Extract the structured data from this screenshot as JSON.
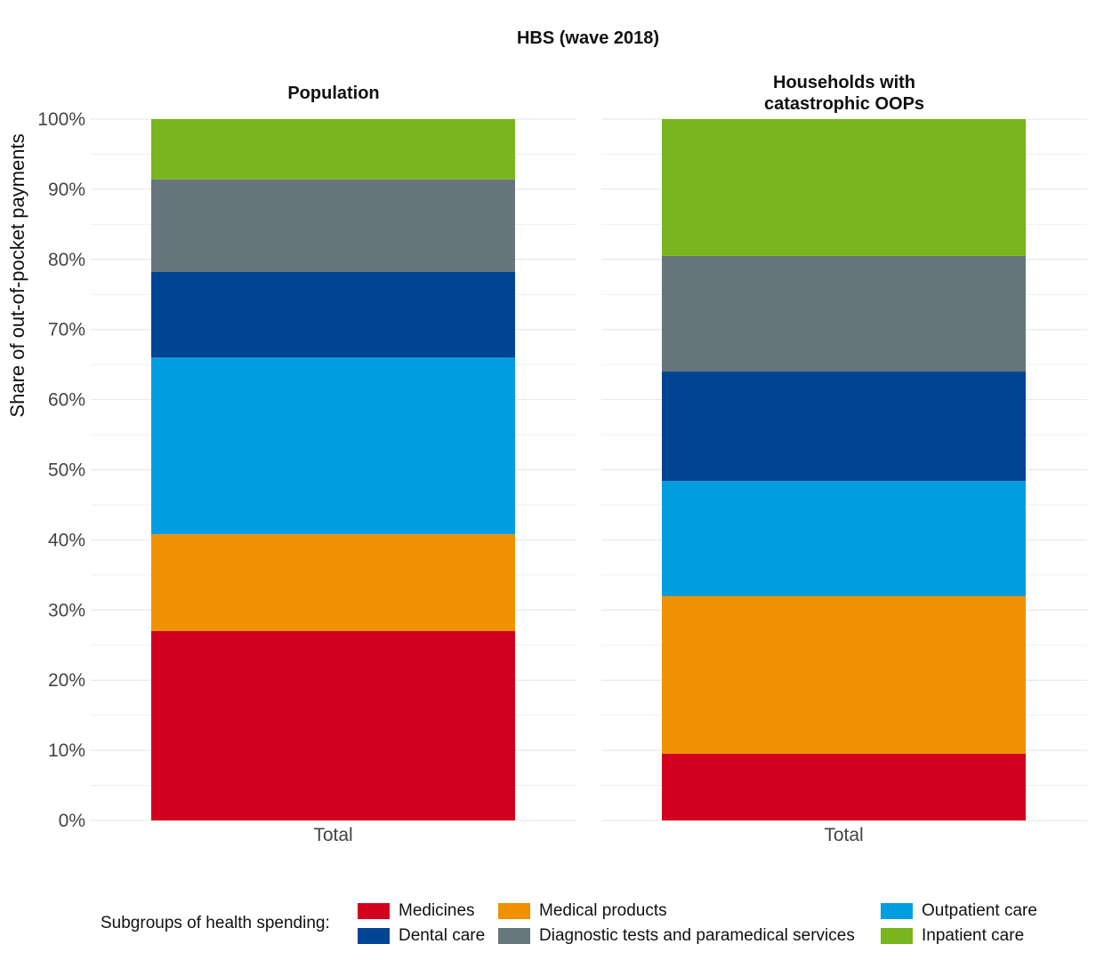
{
  "chart_data": {
    "type": "bar",
    "stacked": true,
    "title": "HBS (wave 2018)",
    "ylabel": "Share of out-of-pocket payments",
    "ylim": [
      0,
      100
    ],
    "yticks": [
      "0%",
      "10%",
      "20%",
      "30%",
      "40%",
      "50%",
      "60%",
      "70%",
      "80%",
      "90%",
      "100%"
    ],
    "panels": [
      {
        "title": "Population",
        "category": "Total",
        "values": {
          "Medicines": 27.0,
          "Medical products": 13.8,
          "Outpatient care": 25.2,
          "Dental care": 12.2,
          "Diagnostic tests and paramedical services": 13.2,
          "Inpatient care": 8.6
        }
      },
      {
        "title": "Households with catastrophic OOPs",
        "title_lines": [
          "Households with",
          "catastrophic OOPs"
        ],
        "category": "Total",
        "values": {
          "Medicines": 9.5,
          "Medical products": 22.5,
          "Outpatient care": 16.4,
          "Dental care": 15.6,
          "Diagnostic tests and paramedical services": 16.5,
          "Inpatient care": 19.5
        }
      }
    ],
    "series": [
      {
        "name": "Medicines",
        "color": "#d2001e"
      },
      {
        "name": "Medical products",
        "color": "#ef9100"
      },
      {
        "name": "Outpatient care",
        "color": "#009ee0"
      },
      {
        "name": "Dental care",
        "color": "#004494"
      },
      {
        "name": "Diagnostic tests and paramedical services",
        "color": "#67757d"
      },
      {
        "name": "Inpatient care",
        "color": "#78b51e"
      }
    ],
    "legend": {
      "title": "Subgroups of health spending:",
      "placement": "bottom",
      "order": [
        "Medicines",
        "Dental care",
        "Medical products",
        "Diagnostic tests and paramedical services",
        "Outpatient care",
        "Inpatient care"
      ]
    },
    "grid": true
  }
}
